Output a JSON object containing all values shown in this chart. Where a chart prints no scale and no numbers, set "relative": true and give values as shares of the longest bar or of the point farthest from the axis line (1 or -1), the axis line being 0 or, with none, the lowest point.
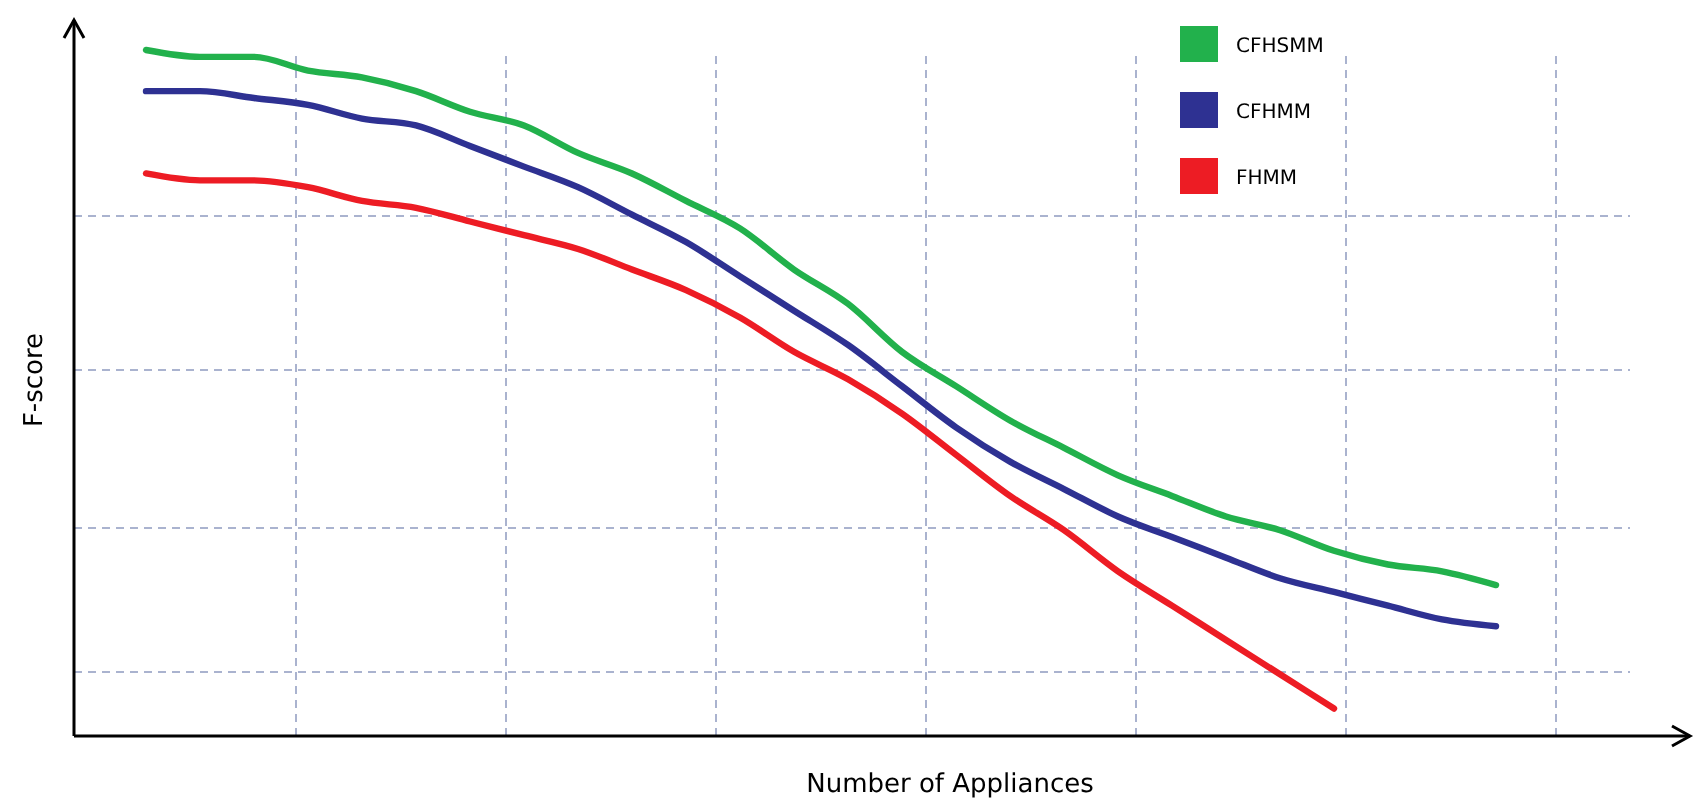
{
  "chart_data": {
    "type": "line",
    "relative": true,
    "xlabel": "Number of Appliances",
    "ylabel": "F-score",
    "grid": true,
    "legend": "top right",
    "categories": [
      null,
      null,
      null,
      null,
      null,
      null,
      null,
      null,
      null,
      null,
      null,
      null,
      null,
      null,
      null,
      null,
      null,
      null,
      null,
      null,
      null,
      null,
      null,
      null,
      null,
      null
    ],
    "series": [
      {
        "name": "CFHSMM",
        "color": "#22b14c",
        "values": [
          1.0,
          0.99,
          0.99,
          0.97,
          0.96,
          0.94,
          0.91,
          0.89,
          0.85,
          0.82,
          0.78,
          0.74,
          0.68,
          0.63,
          0.56,
          0.51,
          0.46,
          0.42,
          0.38,
          0.35,
          0.32,
          0.3,
          0.27,
          0.25,
          0.24,
          0.22
        ]
      },
      {
        "name": "CFHMM",
        "color": "#2e3192",
        "values": [
          0.94,
          0.94,
          0.93,
          0.92,
          0.9,
          0.89,
          0.86,
          0.83,
          0.8,
          0.76,
          0.72,
          0.67,
          0.62,
          0.57,
          0.51,
          0.45,
          0.4,
          0.36,
          0.32,
          0.29,
          0.26,
          0.23,
          0.21,
          0.19,
          0.17,
          0.16
        ]
      },
      {
        "name": "FHMM",
        "color": "#ed1c24",
        "values": [
          0.82,
          0.81,
          0.81,
          0.8,
          0.78,
          0.77,
          0.75,
          0.73,
          0.71,
          0.68,
          0.65,
          0.61,
          0.56,
          0.52,
          0.47,
          0.41,
          0.35,
          0.3,
          0.24,
          0.19,
          0.14,
          0.09,
          0.04,
          null,
          null,
          null
        ]
      }
    ]
  }
}
